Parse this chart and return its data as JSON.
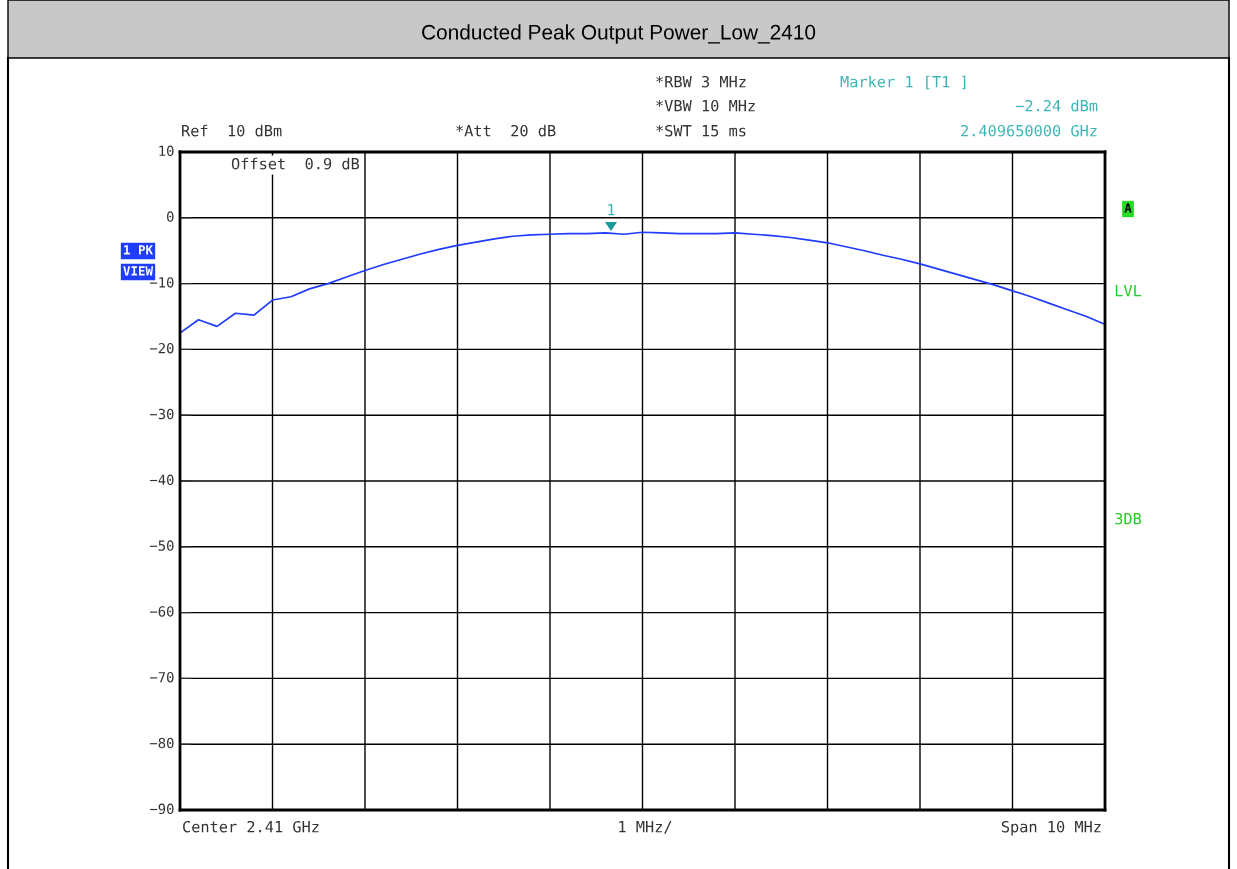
{
  "chart_data": {
    "type": "line",
    "title": "Conducted Peak Output Power_Low_2410",
    "categories": [
      null,
      null,
      null,
      null,
      null,
      null,
      null,
      null,
      null,
      null,
      null,
      null,
      null,
      null,
      null,
      null,
      null,
      null,
      null,
      null,
      null,
      null,
      null,
      null,
      null,
      null,
      null,
      null,
      null,
      null,
      null,
      null,
      null,
      null,
      null,
      null,
      null,
      null,
      null,
      null,
      null,
      null,
      null,
      null,
      null,
      null,
      null,
      null,
      null,
      null,
      null
    ],
    "series": [
      {
        "color": "#1f3cff",
        "values": [
          -17.5,
          -15.5,
          -16.5,
          -14.5,
          -14.8,
          -12.5,
          -12.0,
          -10.8,
          -10.0,
          -9.0,
          -8.0,
          -7.1,
          -6.3,
          -5.5,
          -4.8,
          -4.2,
          -3.7,
          -3.2,
          -2.8,
          -2.6,
          -2.5,
          -2.4,
          -2.4,
          -2.3,
          -2.5,
          -2.2,
          -2.3,
          -2.4,
          -2.4,
          -2.4,
          -2.3,
          -2.5,
          -2.7,
          -3.0,
          -3.4,
          -3.8,
          -4.4,
          -5.0,
          -5.7,
          -6.3,
          -7.0,
          -7.8,
          -8.6,
          -9.4,
          -10.2,
          -11.1,
          -12.0,
          -13.0,
          -14.0,
          -15.0,
          -16.2
        ]
      }
    ],
    "ylim": [
      -90,
      10
    ],
    "yticks": [
      10,
      0,
      -10,
      -20,
      -30,
      -40,
      -50,
      -60,
      -70,
      -80,
      -90
    ],
    "grid": true,
    "tick_labels": "y",
    "annotations": [
      "Ref  10 dBm",
      "*Att  20 dB",
      "*RBW 3 MHz",
      "*VBW 10 MHz",
      "*SWT 15 ms",
      "Marker 1 [T1 ]",
      "−2.24 dBm",
      "2.409650000 GHz",
      "Offset  0.9 dB",
      "1 PK",
      "VIEW",
      "A",
      "LVL",
      "3DB",
      "Center 2.41 GHz",
      "1 MHz/",
      "Span 10 MHz",
      "1"
    ]
  }
}
